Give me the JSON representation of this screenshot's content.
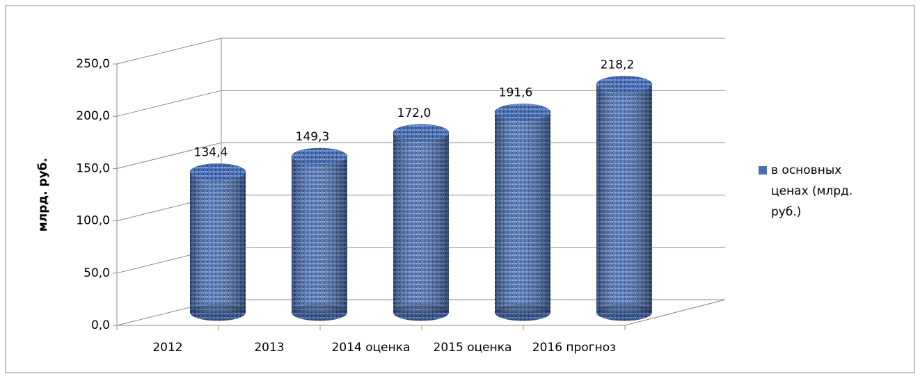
{
  "chart_data": {
    "type": "bar",
    "y_label": "млрд. руб.",
    "categories": [
      "2012",
      "2013",
      "2014 оценка",
      "2015 оценка",
      "2016 прогноз"
    ],
    "series": [
      {
        "name": "в основных ценах (млрд. руб.)",
        "color": "#4a6fb0",
        "values": [
          134.4,
          149.3,
          172.0,
          191.6,
          218.2
        ],
        "value_labels": [
          "134,4",
          "149,3",
          "172,0",
          "191,6",
          "218,2"
        ]
      }
    ],
    "ylim": [
      0,
      250
    ],
    "yticks": [
      {
        "value": 0,
        "label": "0,0"
      },
      {
        "value": 50,
        "label": "50,0"
      },
      {
        "value": 100,
        "label": "100,0"
      },
      {
        "value": 150,
        "label": "150,0"
      },
      {
        "value": 200,
        "label": "200,0"
      },
      {
        "value": 250,
        "label": "250,0"
      }
    ],
    "grid": true,
    "legend": "right"
  }
}
